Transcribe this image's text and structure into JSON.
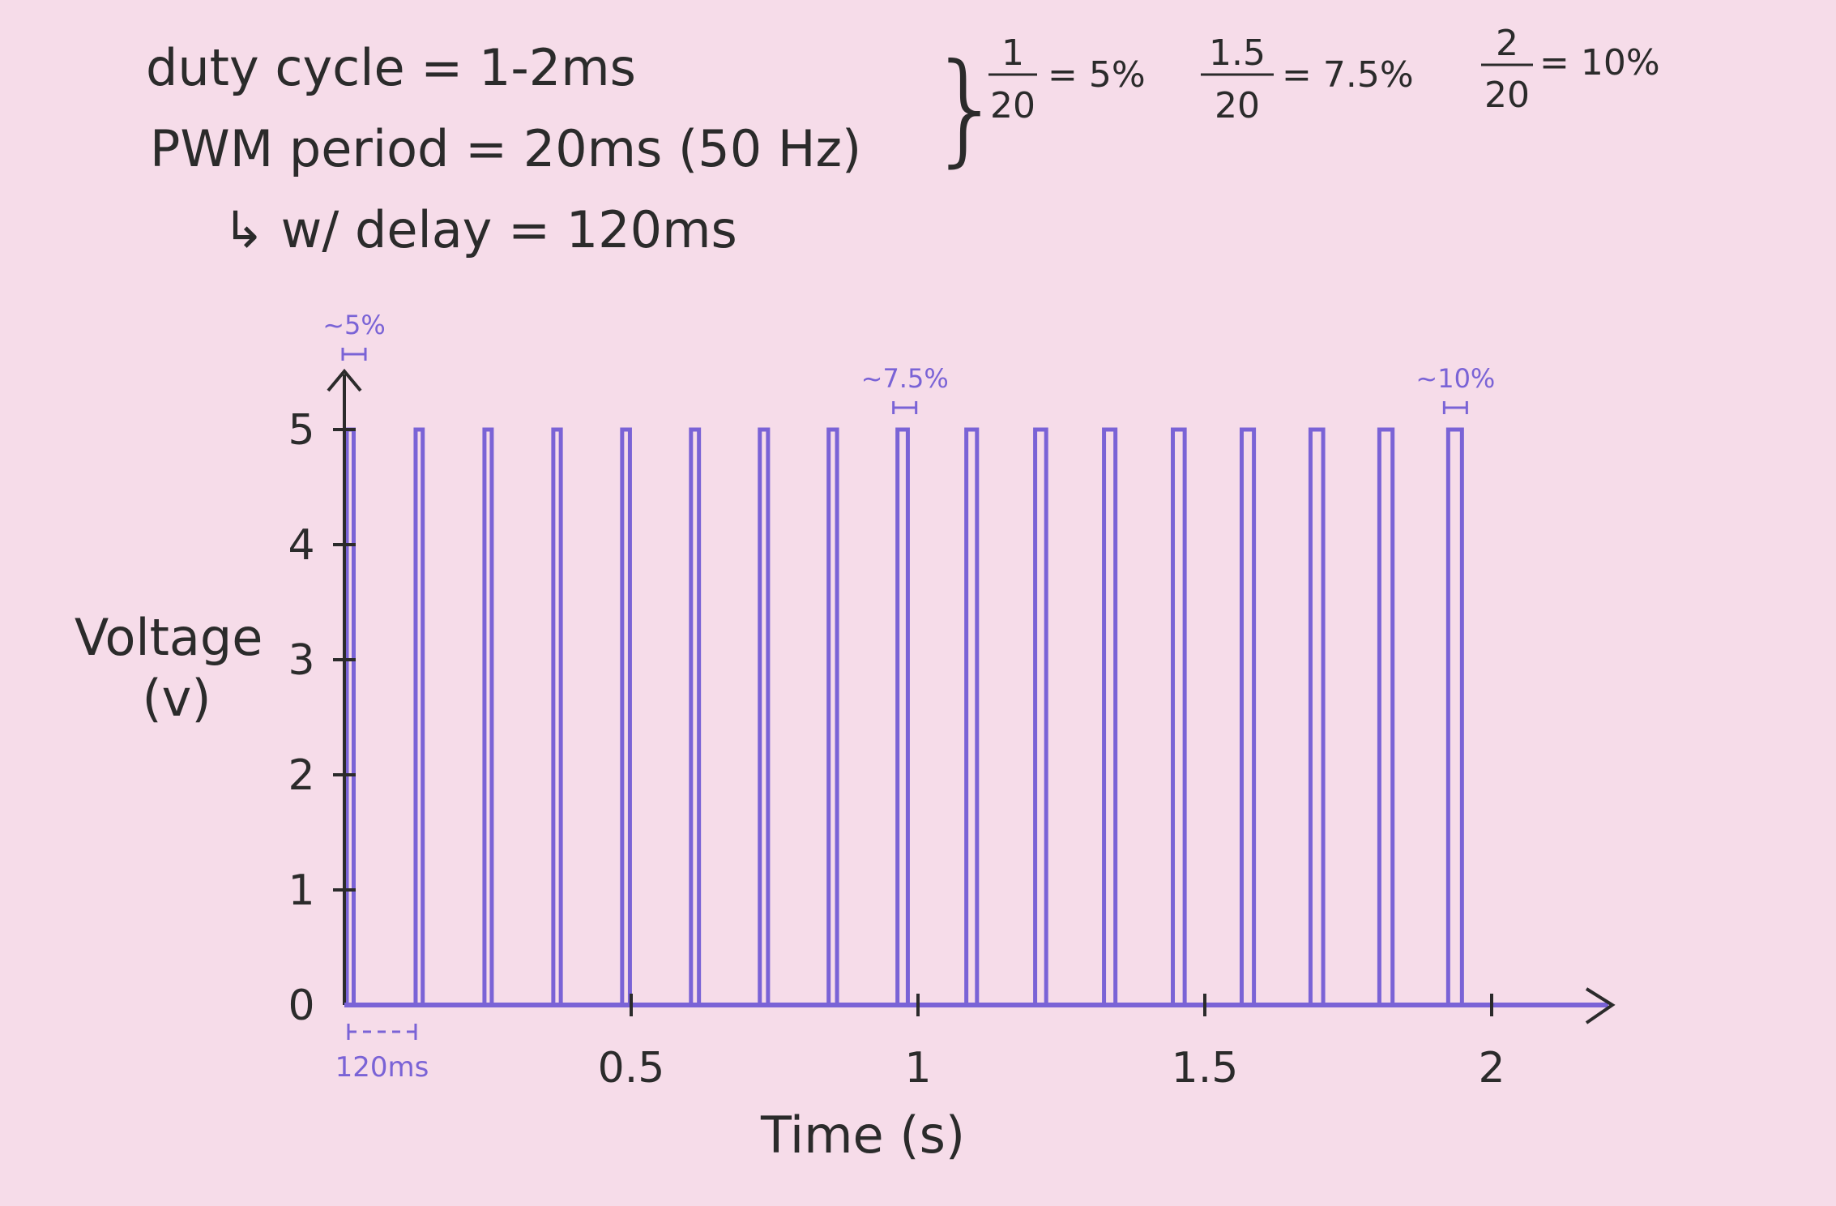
{
  "notes": {
    "line1": "duty cycle = 1-2ms",
    "line2": "PWM period = 20ms (50 Hz)",
    "line3": "↳ w/ delay = 120ms",
    "fractions": [
      {
        "num": "1",
        "den": "20",
        "result": "= 5%"
      },
      {
        "num": "1.5",
        "den": "20",
        "result": "= 7.5%"
      },
      {
        "num": "2",
        "den": "20",
        "result": "= 10%"
      }
    ]
  },
  "chart_data": {
    "type": "line",
    "title": "",
    "xlabel": "Time (s)",
    "ylabel": "Voltage (v)",
    "xlim": [
      0,
      2.1
    ],
    "ylim": [
      0,
      5
    ],
    "x_ticks": [
      {
        "value": 0.5,
        "label": "0.5"
      },
      {
        "value": 1,
        "label": "1"
      },
      {
        "value": 1.5,
        "label": "1.5"
      },
      {
        "value": 2,
        "label": "2"
      }
    ],
    "y_ticks": [
      {
        "value": 0,
        "label": "0"
      },
      {
        "value": 1,
        "label": "1"
      },
      {
        "value": 2,
        "label": "2"
      },
      {
        "value": 3,
        "label": "3"
      },
      {
        "value": 4,
        "label": "4"
      },
      {
        "value": 5,
        "label": "5"
      }
    ],
    "pulse_high_voltage": 5,
    "pulse_start_times_s": [
      0.0,
      0.12,
      0.24,
      0.36,
      0.48,
      0.6,
      0.72,
      0.84,
      0.96,
      1.08,
      1.2,
      1.32,
      1.44,
      1.56,
      1.68,
      1.8,
      1.92
    ],
    "pulse_widths_ms": [
      1.0,
      1.03,
      1.06,
      1.09,
      1.13,
      1.16,
      1.19,
      1.22,
      1.5,
      1.55,
      1.6,
      1.66,
      1.72,
      1.78,
      1.84,
      1.92,
      2.0
    ],
    "annotations": [
      {
        "text": "~5%",
        "at_time_s": 0.0
      },
      {
        "text": "~7.5%",
        "at_time_s": 0.96
      },
      {
        "text": "~10%",
        "at_time_s": 1.92
      },
      {
        "text": "120ms",
        "span_s": [
          0.0,
          0.12
        ]
      }
    ],
    "color": "#7a63d6"
  }
}
